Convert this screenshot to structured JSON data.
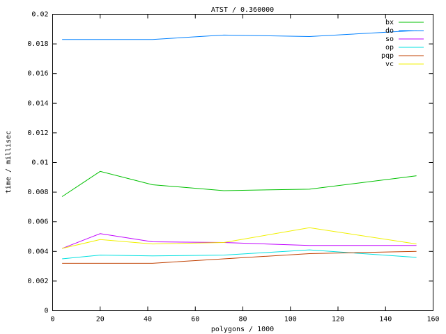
{
  "chart_data": {
    "type": "line",
    "title": "ATST / 0.360000",
    "x_label": "polygons / 1000",
    "y_label": "time / millisec",
    "x": [
      4,
      20,
      42,
      72,
      108,
      153
    ],
    "series": [
      {
        "name": "bx",
        "color": "#00c000",
        "values": [
          0.0077,
          0.0094,
          0.0085,
          0.0081,
          0.0082,
          0.0091
        ]
      },
      {
        "name": "do",
        "color": "#0080ff",
        "values": [
          0.0183,
          0.0183,
          0.0183,
          0.0186,
          0.0185,
          0.0189
        ]
      },
      {
        "name": "so",
        "color": "#c000ff",
        "values": [
          0.0042,
          0.0052,
          0.00465,
          0.0046,
          0.0044,
          0.0044
        ]
      },
      {
        "name": "op",
        "color": "#00e0e0",
        "values": [
          0.0035,
          0.00375,
          0.0037,
          0.00375,
          0.0041,
          0.0036
        ]
      },
      {
        "name": "pqp",
        "color": "#c04000",
        "values": [
          0.0032,
          0.0032,
          0.0032,
          0.0035,
          0.00385,
          0.004
        ]
      },
      {
        "name": "vc",
        "color": "#f0f000",
        "values": [
          0.0042,
          0.0048,
          0.0045,
          0.0046,
          0.0056,
          0.0045
        ]
      }
    ],
    "xlim": [
      0,
      160
    ],
    "xticks": [
      0,
      20,
      40,
      60,
      80,
      100,
      120,
      140,
      160
    ],
    "ylim": [
      0,
      0.02
    ],
    "yticks": [
      0,
      0.002,
      0.004,
      0.006,
      0.008,
      0.01,
      0.012,
      0.014,
      0.016,
      0.018,
      0.02
    ],
    "legend": "top-right"
  }
}
